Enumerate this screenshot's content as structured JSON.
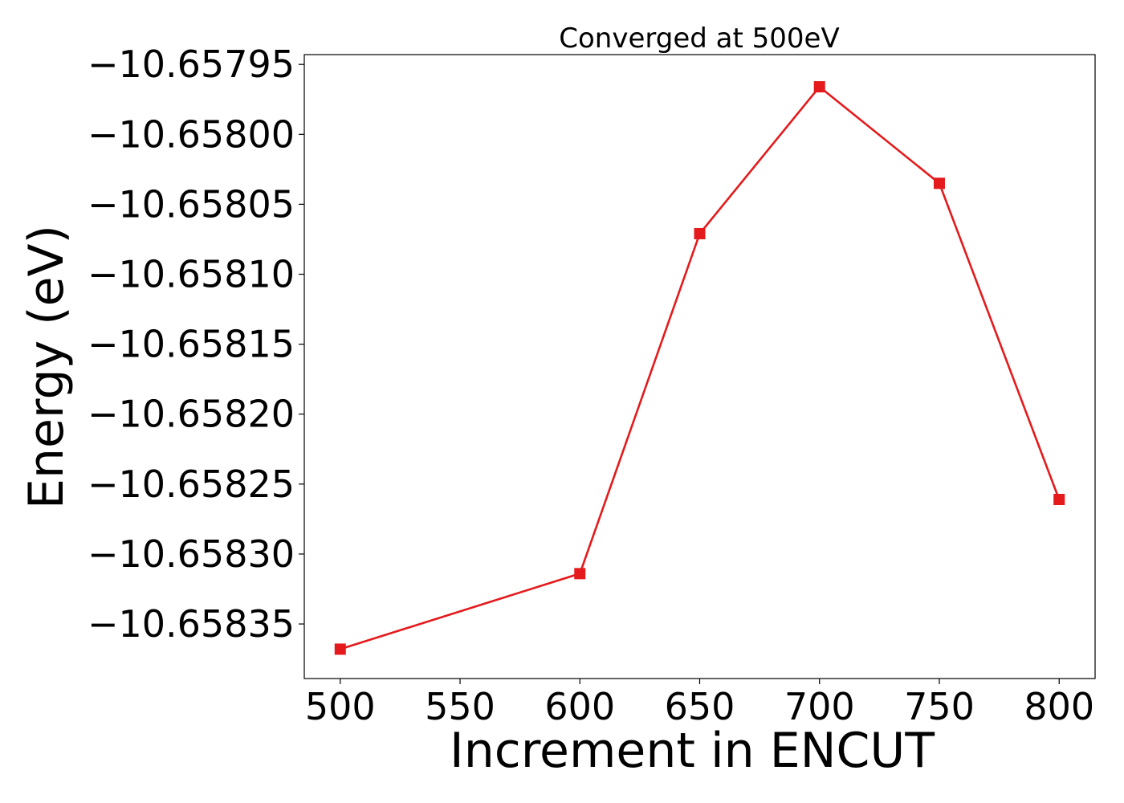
{
  "chart_data": {
    "type": "line",
    "title": "Converged at 500eV",
    "xlabel": "Increment in ENCUT",
    "ylabel": "Energy (eV)",
    "xlim": [
      485,
      815
    ],
    "ylim": [
      -10.658389,
      -10.657943
    ],
    "x_ticks": [
      500,
      550,
      600,
      650,
      700,
      750,
      800
    ],
    "y_ticks": [
      -10.65795,
      -10.658,
      -10.65805,
      -10.6581,
      -10.65815,
      -10.6582,
      -10.65825,
      -10.6583,
      -10.65835
    ],
    "x_tick_labels": [
      "500",
      "550",
      "600",
      "650",
      "700",
      "750",
      "800"
    ],
    "y_tick_labels": [
      "−10.65795",
      "−10.65800",
      "−10.65805",
      "−10.65810",
      "−10.65815",
      "−10.65820",
      "−10.65825",
      "−10.65830",
      "−10.65835"
    ],
    "grid": false,
    "series": [
      {
        "x": [
          500,
          600,
          650,
          700,
          750,
          800
        ],
        "values": [
          -10.658368,
          -10.658314,
          -10.658071,
          -10.657966,
          -10.658035,
          -10.658261
        ],
        "color": "#e41a1c",
        "marker": "square"
      }
    ]
  }
}
